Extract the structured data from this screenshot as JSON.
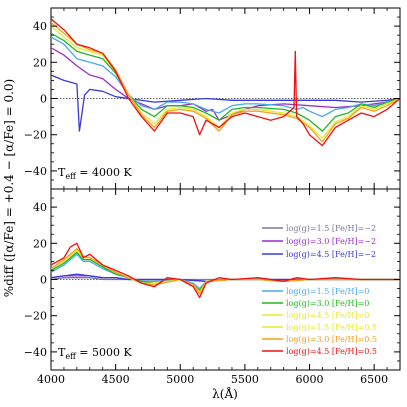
{
  "chart_data": {
    "type": "line",
    "ylabel": "%diff ([α/Fe] = +0.4 − [α/Fe] = 0.0)",
    "xlabel": "λ(Å)",
    "xlim": [
      4000,
      6700
    ],
    "x_ticks": [
      4000,
      4500,
      5000,
      5500,
      6000,
      6500
    ],
    "x_tick_labels": [
      "4000",
      "4500",
      "5000",
      "5500",
      "6000",
      "6500"
    ],
    "panels": [
      {
        "id": "top",
        "label_prefix": "T",
        "label_sub": "eff",
        "label_suffix": " = 4000 K",
        "ylim": [
          -50,
          50
        ],
        "y_ticks": [
          -40,
          -20,
          0,
          20,
          40
        ],
        "y_tick_labels": [
          "−40",
          "−20",
          "0",
          "20",
          "40"
        ],
        "reference_line": 0,
        "series": [
          {
            "color": "#3a3ad8",
            "x": [
              4000,
              4100,
              4200,
              4220,
              4260,
              4300,
              4400,
              4500,
              4600,
              4800,
              5000,
              5200,
              5400,
              5600,
              5800,
              5900,
              6000,
              6200,
              6400,
              6600,
              6700
            ],
            "y": [
              13,
              10,
              8,
              -18,
              2,
              5,
              4,
              1,
              0,
              -2,
              -1,
              0,
              -1,
              -1,
              -1,
              -1,
              -1,
              -1,
              -2,
              -1,
              0
            ]
          },
          {
            "color": "#9a2ec8",
            "x": [
              4000,
              4100,
              4200,
              4300,
              4400,
              4500,
              4600,
              4700,
              4800,
              4900,
              5000,
              5100,
              5200,
              5250,
              5300,
              5500,
              5600,
              5800,
              6000,
              6200,
              6400,
              6600,
              6700
            ],
            "y": [
              28,
              24,
              18,
              13,
              11,
              5,
              0,
              -3,
              -6,
              -4,
              -4,
              -3,
              -7,
              -6,
              -12,
              -6,
              -4,
              -3,
              -4,
              -5,
              -4,
              -2,
              0
            ]
          },
          {
            "color": "#4aa8f0",
            "x": [
              4000,
              4100,
              4200,
              4300,
              4400,
              4500,
              4600,
              4700,
              4800,
              4900,
              5000,
              5100,
              5200,
              5300,
              5400,
              5500,
              5600,
              5800,
              5900,
              5950,
              6000,
              6100,
              6200,
              6300,
              6400,
              6500,
              6600,
              6700
            ],
            "y": [
              34,
              30,
              22,
              20,
              18,
              12,
              2,
              -4,
              -6,
              -2,
              -2,
              -3,
              -6,
              -8,
              -4,
              -3,
              -3,
              -4,
              -6,
              -5,
              -7,
              -10,
              -6,
              -5,
              -3,
              -4,
              -2,
              0
            ]
          },
          {
            "color": "#22b822",
            "x": [
              4000,
              4100,
              4200,
              4300,
              4400,
              4500,
              4600,
              4700,
              4800,
              4900,
              5000,
              5100,
              5200,
              5300,
              5400,
              5500,
              5600,
              5800,
              5900,
              6000,
              6100,
              6200,
              6300,
              6400,
              6500,
              6600,
              6700
            ],
            "y": [
              36,
              32,
              26,
              24,
              22,
              14,
              2,
              -6,
              -10,
              -4,
              -4,
              -5,
              -8,
              -12,
              -6,
              -5,
              -5,
              -6,
              -8,
              -12,
              -18,
              -10,
              -8,
              -3,
              -5,
              -2,
              0
            ]
          },
          {
            "color": "#e8e830",
            "x": [
              4000,
              4100,
              4200,
              4300,
              4400,
              4500,
              4600,
              4700,
              4800,
              4900,
              5000,
              5100,
              5200,
              5300,
              5400,
              5500,
              5600,
              5800,
              5900,
              6000,
              6100,
              6200,
              6300,
              6400,
              6500,
              6600,
              6700
            ],
            "y": [
              40,
              34,
              28,
              26,
              24,
              15,
              2,
              -8,
              -14,
              -6,
              -5,
              -6,
              -10,
              -16,
              -8,
              -6,
              -6,
              -8,
              -10,
              -15,
              -22,
              -13,
              -10,
              -4,
              -6,
              -3,
              0
            ]
          },
          {
            "color": "#f5a020",
            "x": [
              4000,
              4100,
              4200,
              4300,
              4400,
              4500,
              4600,
              4700,
              4800,
              4900,
              5000,
              5100,
              5200,
              5300,
              5400,
              5500,
              5600,
              5800,
              5900,
              6000,
              6100,
              6200,
              6300,
              6400,
              6500,
              6600,
              6700
            ],
            "y": [
              42,
              36,
              30,
              27,
              25,
              16,
              2,
              -9,
              -16,
              -7,
              -6,
              -7,
              -11,
              -18,
              -9,
              -7,
              -7,
              -9,
              -11,
              -16,
              -24,
              -14,
              -11,
              -5,
              -7,
              -4,
              0
            ]
          },
          {
            "color": "#f01010",
            "x": [
              4000,
              4100,
              4200,
              4300,
              4400,
              4500,
              4600,
              4700,
              4800,
              4900,
              5000,
              5100,
              5150,
              5200,
              5300,
              5400,
              5500,
              5600,
              5700,
              5800,
              5880,
              5890,
              5900,
              5950,
              6000,
              6100,
              6200,
              6300,
              6400,
              6500,
              6600,
              6700
            ],
            "y": [
              44,
              38,
              30,
              28,
              25,
              15,
              0,
              -10,
              -18,
              -8,
              -8,
              -10,
              -20,
              -12,
              -16,
              -10,
              -8,
              -10,
              -12,
              -10,
              -5,
              26,
              -10,
              -14,
              -20,
              -26,
              -16,
              -12,
              -8,
              -10,
              -6,
              0
            ]
          }
        ]
      },
      {
        "id": "bottom",
        "label_prefix": "T",
        "label_sub": "eff",
        "label_suffix": " = 5000 K",
        "ylim": [
          -50,
          50
        ],
        "y_ticks": [
          -40,
          -20,
          0,
          20,
          40
        ],
        "y_tick_labels": [
          "−40",
          "−20",
          "0",
          "20",
          "40"
        ],
        "reference_line": 0,
        "series": [
          {
            "color": "#7a7a9a",
            "x": [
              4000,
              4100,
              4200,
              4300,
              4400,
              4500,
              4600,
              4800,
              5000,
              5200,
              5400,
              5600,
              5800,
              6000,
              6200,
              6400,
              6600,
              6700
            ],
            "y": [
              0,
              1,
              1,
              1,
              0,
              0,
              0,
              0,
              0,
              0,
              0,
              0,
              0,
              0,
              0,
              0,
              0,
              0
            ]
          },
          {
            "color": "#9a2ec8",
            "x": [
              4000,
              4100,
              4200,
              4300,
              4400,
              4500,
              4600,
              4800,
              5000,
              5200,
              5400,
              5600,
              5800,
              6000,
              6200,
              6400,
              6600,
              6700
            ],
            "y": [
              1,
              2,
              2,
              2,
              1,
              1,
              0,
              0,
              0,
              -1,
              0,
              0,
              0,
              0,
              0,
              0,
              0,
              0
            ]
          },
          {
            "color": "#3a3ad8",
            "x": [
              4000,
              4100,
              4200,
              4300,
              4400,
              4500,
              4600,
              4800,
              5000,
              5200,
              5400,
              5600,
              5800,
              6000,
              6200,
              6400,
              6600,
              6700
            ],
            "y": [
              1,
              2,
              3,
              2,
              1,
              1,
              0,
              0,
              0,
              -1,
              0,
              0,
              0,
              0,
              0,
              0,
              0,
              0
            ]
          },
          {
            "color": "#4aa8f0",
            "x": [
              4000,
              4100,
              4200,
              4250,
              4300,
              4400,
              4500,
              4600,
              4700,
              4800,
              5000,
              5100,
              5150,
              5200,
              5400,
              5600,
              5800,
              6000,
              6200,
              6400,
              6600,
              6700
            ],
            "y": [
              4,
              8,
              14,
              10,
              10,
              6,
              3,
              1,
              -1,
              -1,
              0,
              -2,
              -5,
              -1,
              0,
              0,
              -1,
              0,
              0,
              0,
              0,
              0
            ]
          },
          {
            "color": "#22b822",
            "x": [
              4000,
              4100,
              4200,
              4250,
              4300,
              4400,
              4500,
              4600,
              4700,
              4800,
              5000,
              5100,
              5150,
              5200,
              5400,
              5600,
              5800,
              6000,
              6200,
              6400,
              6600,
              6700
            ],
            "y": [
              5,
              9,
              15,
              11,
              11,
              7,
              3,
              1,
              -1,
              -2,
              0,
              -3,
              -6,
              -1,
              0,
              0,
              -1,
              0,
              0,
              0,
              0,
              0
            ]
          },
          {
            "color": "#e8e830",
            "x": [
              4000,
              4100,
              4200,
              4250,
              4300,
              4400,
              4500,
              4600,
              4700,
              4800,
              5000,
              5100,
              5150,
              5200,
              5400,
              5600,
              5800,
              6000,
              6200,
              6400,
              6600,
              6700
            ],
            "y": [
              6,
              10,
              16,
              12,
              12,
              8,
              4,
              1,
              -2,
              -2,
              0,
              -3,
              -7,
              -1,
              0,
              0,
              -1,
              0,
              0,
              0,
              0,
              0
            ]
          },
          {
            "color": "#f5a020",
            "x": [
              4000,
              4100,
              4200,
              4250,
              4300,
              4400,
              4500,
              4600,
              4700,
              4800,
              5000,
              5100,
              5150,
              5200,
              5400,
              5600,
              5800,
              6000,
              6200,
              6400,
              6600,
              6700
            ],
            "y": [
              6,
              11,
              17,
              13,
              12,
              8,
              4,
              1,
              -2,
              -3,
              0,
              -3,
              -8,
              -1,
              0,
              0,
              -1,
              0,
              0,
              0,
              0,
              0
            ]
          },
          {
            "color": "#f01010",
            "x": [
              4000,
              4100,
              4150,
              4200,
              4250,
              4300,
              4400,
              4500,
              4600,
              4700,
              4800,
              4900,
              5000,
              5100,
              5150,
              5200,
              5300,
              5400,
              5600,
              5800,
              5900,
              6000,
              6200,
              6400,
              6600,
              6700
            ],
            "y": [
              8,
              12,
              18,
              20,
              12,
              14,
              8,
              5,
              2,
              -2,
              -4,
              1,
              0,
              -4,
              -10,
              -2,
              1,
              0,
              1,
              -1,
              1,
              0,
              1,
              0,
              0,
              0
            ]
          }
        ]
      }
    ],
    "legend": [
      {
        "color": "#7a7a9a",
        "label": "log(g)=1.5 [Fe/H]=−2"
      },
      {
        "color": "#9a2ec8",
        "label": "log(g)=3.0 [Fe/H]=−2"
      },
      {
        "color": "#3a3ad8",
        "label": "log(g)=4.5 [Fe/H]=−2"
      },
      {
        "color": "#4aa8f0",
        "label": "log(g)=1.5 [Fe/H]=0"
      },
      {
        "color": "#22b822",
        "label": "log(g)=3.0 [Fe/H]=0"
      },
      {
        "color": "#e8e830",
        "label": "log(g)=4.5 [Fe/H]=0"
      },
      {
        "color": "#e8e830",
        "label": "log(g)=1.5 [Fe/H]=0.5"
      },
      {
        "color": "#f5a020",
        "label": "log(g)=3.0 [Fe/H]=0.5"
      },
      {
        "color": "#f01010",
        "label": "log(g)=4.5 [Fe/H]=0.5"
      }
    ],
    "legend_placement": "bottom-panel right"
  }
}
